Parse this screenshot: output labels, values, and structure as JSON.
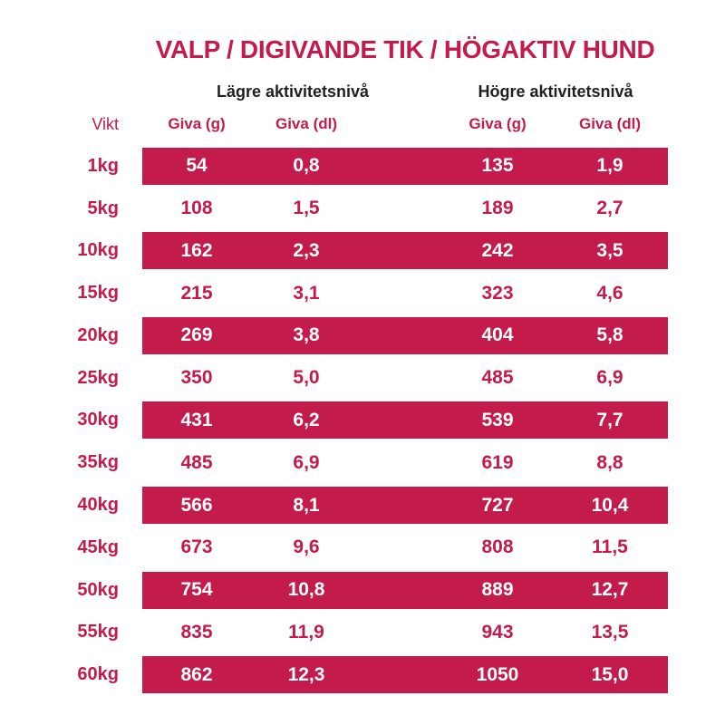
{
  "title": "VALP / DIGIVANDE TIK / HÖGAKTIV HUND",
  "colors": {
    "accent": "#C31B4B",
    "heading_text": "#231F20",
    "on_accent": "#FFFFFF"
  },
  "table": {
    "weight_header": "Vikt",
    "group_headers": [
      "Lägre aktivitetsnivå",
      "Högre aktivitetsnivå"
    ],
    "column_headers": [
      "Giva (g)",
      "Giva (dl)",
      "Giva (g)",
      "Giva (dl)"
    ],
    "rows": [
      {
        "weight": "1kg",
        "values": [
          "54",
          "0,8",
          "135",
          "1,9"
        ]
      },
      {
        "weight": "5kg",
        "values": [
          "108",
          "1,5",
          "189",
          "2,7"
        ]
      },
      {
        "weight": "10kg",
        "values": [
          "162",
          "2,3",
          "242",
          "3,5"
        ]
      },
      {
        "weight": "15kg",
        "values": [
          "215",
          "3,1",
          "323",
          "4,6"
        ]
      },
      {
        "weight": "20kg",
        "values": [
          "269",
          "3,8",
          "404",
          "5,8"
        ]
      },
      {
        "weight": "25kg",
        "values": [
          "350",
          "5,0",
          "485",
          "6,9"
        ]
      },
      {
        "weight": "30kg",
        "values": [
          "431",
          "6,2",
          "539",
          "7,7"
        ]
      },
      {
        "weight": "35kg",
        "values": [
          "485",
          "6,9",
          "619",
          "8,8"
        ]
      },
      {
        "weight": "40kg",
        "values": [
          "566",
          "8,1",
          "727",
          "10,4"
        ]
      },
      {
        "weight": "45kg",
        "values": [
          "673",
          "9,6",
          "808",
          "11,5"
        ]
      },
      {
        "weight": "50kg",
        "values": [
          "754",
          "10,8",
          "889",
          "12,7"
        ]
      },
      {
        "weight": "55kg",
        "values": [
          "835",
          "11,9",
          "943",
          "13,5"
        ]
      },
      {
        "weight": "60kg",
        "values": [
          "862",
          "12,3",
          "1050",
          "15,0"
        ]
      }
    ]
  }
}
